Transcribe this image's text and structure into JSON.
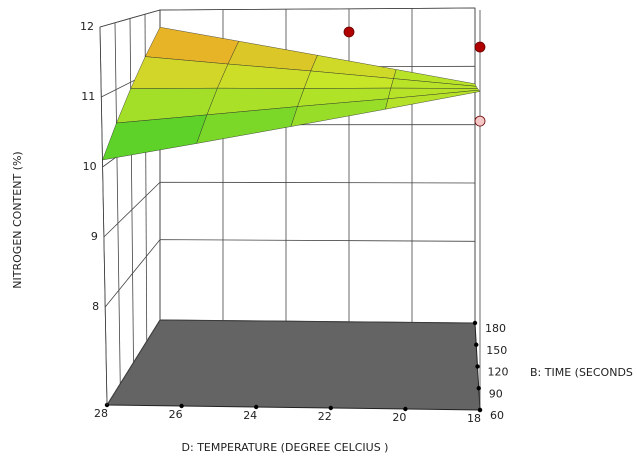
{
  "chart_data": {
    "type": "surface3d",
    "z_label": "NITROGEN CONTENT (%)",
    "x_label": "D: TEMPERATURE (DEGREE CELCIUS )",
    "y_label": "B: TIME (SECONDS )",
    "x": [
      28,
      25.5,
      23,
      20.5,
      18
    ],
    "y": [
      60,
      90,
      120,
      150,
      180
    ],
    "z": [
      [
        10.1,
        10.3,
        10.5,
        10.7,
        10.9
      ],
      [
        10.5,
        10.59,
        10.68,
        10.76,
        10.85
      ],
      [
        10.9,
        10.88,
        10.85,
        10.83,
        10.8
      ],
      [
        11.3,
        11.16,
        11.03,
        10.89,
        10.75
      ],
      [
        11.7,
        11.45,
        11.2,
        10.95,
        10.7
      ]
    ],
    "xlim": [
      28,
      18
    ],
    "xticks": [
      28,
      26,
      24,
      22,
      20,
      18
    ],
    "ylim": [
      60,
      180
    ],
    "yticks": [
      60,
      90,
      120,
      150,
      180
    ],
    "zlim": [
      6.6,
      12
    ],
    "zticks": [
      8,
      9,
      10,
      11,
      12
    ],
    "points": {
      "x": [
        22,
        18,
        18
      ],
      "y": [
        180,
        60,
        60
      ],
      "z": [
        11.6,
        11.5,
        10.5
      ],
      "colors": [
        "#b00000",
        "#b00000",
        "#f4c6c6"
      ]
    },
    "floor_color": "#646464"
  }
}
